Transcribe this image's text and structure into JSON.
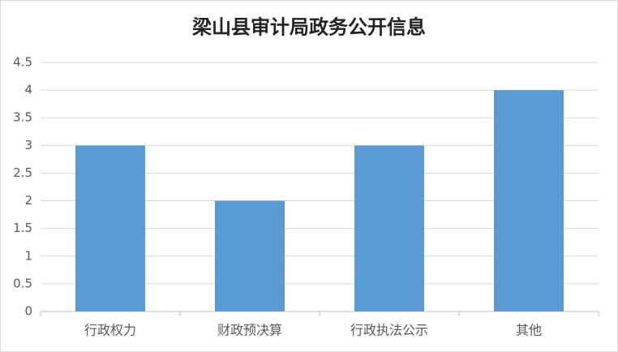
{
  "chart_data": {
    "type": "bar",
    "title": "梁山县审计局政务公开信息",
    "categories": [
      "行政权力",
      "财政预决算",
      "行政执法公示",
      "其他"
    ],
    "values": [
      3,
      2,
      3,
      4
    ],
    "color": "#5b9bd5",
    "ylim": [
      0,
      4.5
    ],
    "yticks": [
      0,
      0.5,
      1,
      1.5,
      2,
      2.5,
      3,
      3.5,
      4,
      4.5
    ],
    "grid": true
  }
}
